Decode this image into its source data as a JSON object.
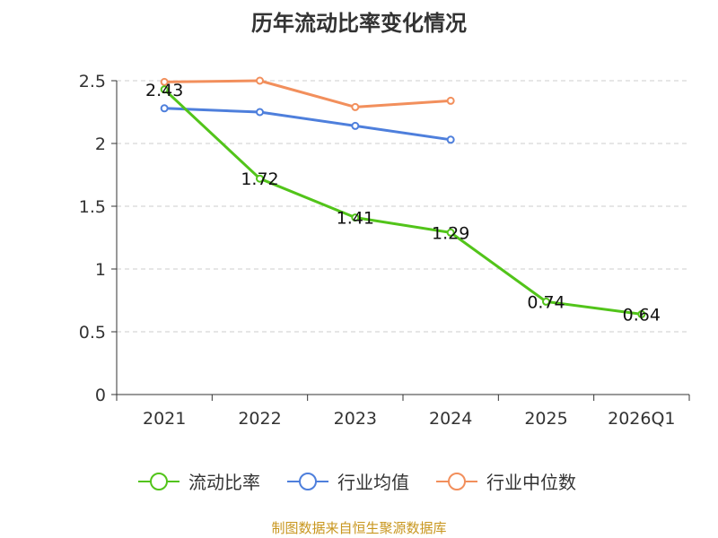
{
  "chart_data": {
    "type": "line",
    "title": "历年流动比率变化情况",
    "categories": [
      "2021",
      "2022",
      "2023",
      "2024",
      "2025",
      "2026Q1"
    ],
    "yticks": [
      "0",
      "0.5",
      "1",
      "1.5",
      "2",
      "2.5"
    ],
    "ylim": [
      0,
      2.5
    ],
    "grid": true,
    "legend_position": "bottom",
    "series": [
      {
        "name": "流动比率",
        "color": "#52c41a",
        "values": [
          2.43,
          1.72,
          1.41,
          1.29,
          0.74,
          0.64
        ],
        "labels": [
          "2.43",
          "1.72",
          "1.41",
          "1.29",
          "0.74",
          "0.64"
        ]
      },
      {
        "name": "行业均值",
        "color": "#4e7fdc",
        "values": [
          2.28,
          2.25,
          2.14,
          2.03,
          null,
          null
        ]
      },
      {
        "name": "行业中位数",
        "color": "#f28f5c",
        "values": [
          2.49,
          2.5,
          2.29,
          2.34,
          null,
          null
        ]
      }
    ]
  },
  "footer": {
    "source": "制图数据来自恒生聚源数据库",
    "color": "#c8961e"
  }
}
